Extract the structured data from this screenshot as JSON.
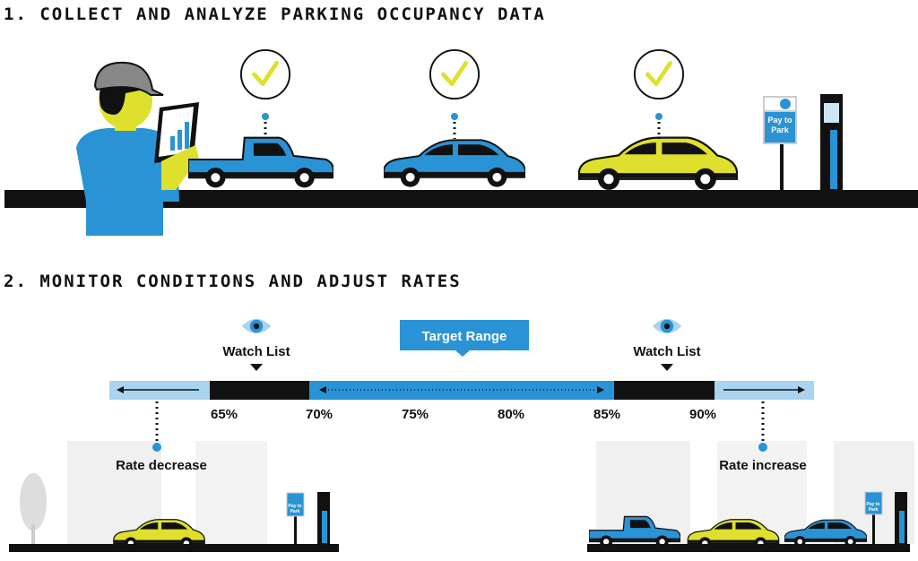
{
  "section1": {
    "title": "1. COLLECT AND ANALYZE PARKING OCCUPANCY DATA"
  },
  "section2": {
    "title": "2. MONITOR CONDITIONS AND ADJUST RATES",
    "target_range": "Target Range",
    "watch_lists": [
      "Watch List",
      "Watch List"
    ],
    "scale_labels": [
      "65%",
      "70%",
      "75%",
      "80%",
      "85%",
      "90%"
    ],
    "rate_decrease": "Rate decrease",
    "rate_increase": "Rate increase"
  },
  "signs": [
    [
      "Pay to",
      "Park"
    ],
    [
      "Pay to",
      "Park"
    ],
    [
      "Pay to",
      "Park"
    ]
  ]
}
